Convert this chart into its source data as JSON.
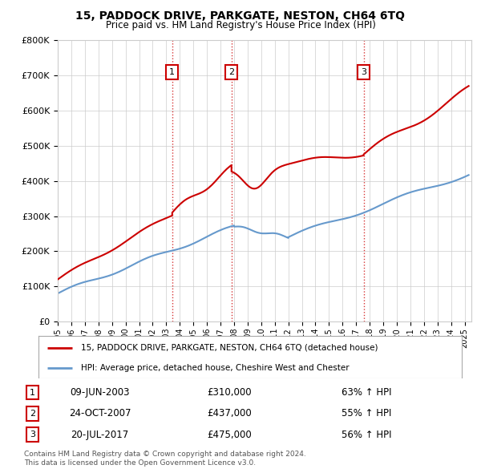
{
  "title": "15, PADDOCK DRIVE, PARKGATE, NESTON, CH64 6TQ",
  "subtitle": "Price paid vs. HM Land Registry's House Price Index (HPI)",
  "property_label": "15, PADDOCK DRIVE, PARKGATE, NESTON, CH64 6TQ (detached house)",
  "hpi_label": "HPI: Average price, detached house, Cheshire West and Chester",
  "footer1": "Contains HM Land Registry data © Crown copyright and database right 2024.",
  "footer2": "This data is licensed under the Open Government Licence v3.0.",
  "sales": [
    {
      "num": 1,
      "date": "09-JUN-2003",
      "price": 310000,
      "pct": "63% ↑ HPI",
      "year": 2003.44
    },
    {
      "num": 2,
      "date": "24-OCT-2007",
      "price": 437000,
      "pct": "55% ↑ HPI",
      "year": 2007.81
    },
    {
      "num": 3,
      "date": "20-JUL-2017",
      "price": 475000,
      "pct": "56% ↑ HPI",
      "year": 2017.55
    }
  ],
  "red_color": "#cc0000",
  "blue_color": "#6699cc",
  "ylim": [
    0,
    800000
  ],
  "xlim_start": 1995.0,
  "xlim_end": 2025.5
}
